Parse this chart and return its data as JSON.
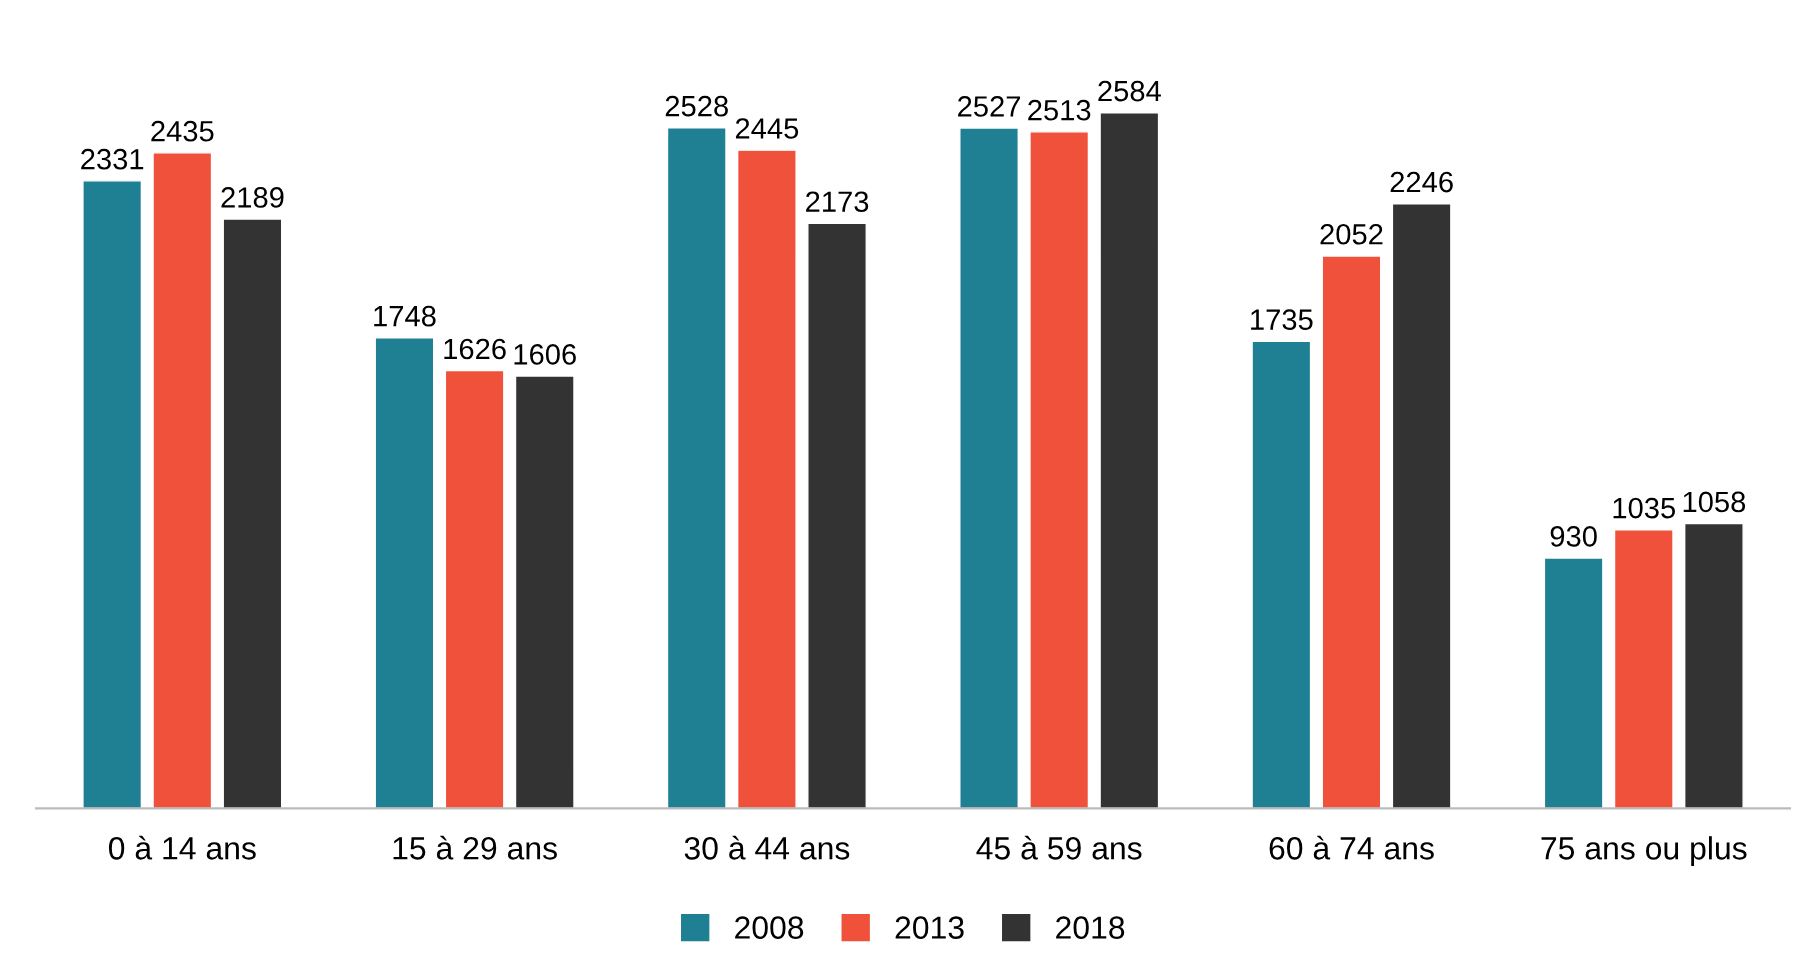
{
  "chart_data": {
    "type": "bar",
    "categories": [
      "0 à 14 ans",
      "15 à 29 ans",
      "30 à 44 ans",
      "45 à 59 ans",
      "60 à 74 ans",
      "75 ans ou plus"
    ],
    "series": [
      {
        "name": "2008",
        "color": "#1f7f93",
        "values": [
          2331,
          1748,
          2528,
          2527,
          1735,
          930
        ]
      },
      {
        "name": "2013",
        "color": "#f0513a",
        "values": [
          2435,
          1626,
          2445,
          2513,
          2052,
          1035
        ]
      },
      {
        "name": "2018",
        "color": "#333333",
        "values": [
          2189,
          1606,
          2173,
          2584,
          2246,
          1058
        ]
      }
    ],
    "data_labels": true,
    "legend": "bottom",
    "grid": false
  }
}
